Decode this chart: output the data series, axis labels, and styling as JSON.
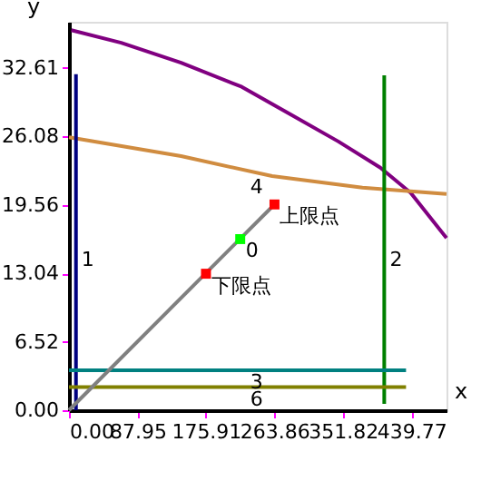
{
  "chart_data": {
    "type": "line",
    "xlabel": "x",
    "ylabel": "y",
    "xlim": [
      0,
      485
    ],
    "ylim": [
      0,
      37
    ],
    "xticks": [
      {
        "value": 0,
        "label": "0.00"
      },
      87.95,
      175.91,
      263.86,
      351.82,
      439.77
    ],
    "yticks": [
      {
        "value": 0,
        "label": "0.00"
      },
      6.52,
      13.04,
      19.56,
      26.08,
      32.61
    ],
    "grid": false,
    "line_style": "solid",
    "series": [
      {
        "color": "#800080",
        "x": [
          3,
          67,
          144,
          222,
          284,
          346,
          400,
          439,
          485
        ],
        "values": [
          36.2,
          35.0,
          33.1,
          30.8,
          28.2,
          25.6,
          23.1,
          20.7,
          16.4
        ]
      },
      {
        "color": "#d08c40",
        "x": [
          0,
          144,
          261,
          377,
          485
        ],
        "values": [
          26.0,
          24.2,
          22.3,
          21.2,
          20.6
        ]
      },
      {
        "color": "#000080",
        "x": [
          9,
          9
        ],
        "values": [
          0,
          32.0
        ]
      },
      {
        "color": "#008000",
        "x": [
          405,
          405
        ],
        "values": [
          0.6,
          31.9
        ]
      },
      {
        "color": "#008080",
        "x": [
          0,
          433
        ],
        "values": [
          3.8,
          3.8
        ]
      },
      {
        "color": "#808000",
        "x": [
          0,
          433
        ],
        "values": [
          2.2,
          2.2
        ]
      },
      {
        "color": "#808080",
        "x": [
          0,
          264
        ],
        "values": [
          0,
          19.6
        ]
      },
      {
        "type": "scatter",
        "marker": "square",
        "color": "#ff0000",
        "x": [
          176,
          264
        ],
        "values": [
          13.0,
          19.6
        ]
      },
      {
        "type": "scatter",
        "marker": "square",
        "color": "#00ff00",
        "x": [
          220
        ],
        "values": [
          16.3
        ]
      }
    ],
    "annotations": [
      {
        "text": "上限点",
        "x": 264,
        "y": 19.6
      },
      {
        "text": "下限点",
        "x": 176,
        "y": 13.0
      },
      {
        "text": "0",
        "x": 220,
        "y": 16.3
      },
      {
        "text": "1",
        "x": 9,
        "y": 15.5
      },
      {
        "text": "2",
        "x": 405,
        "y": 15.5
      },
      {
        "text": "3",
        "x": 226,
        "y": 3.8
      },
      {
        "text": "6",
        "x": 226,
        "y": 2.2
      },
      {
        "text": "4",
        "x": 226,
        "y": 22.4
      }
    ]
  }
}
